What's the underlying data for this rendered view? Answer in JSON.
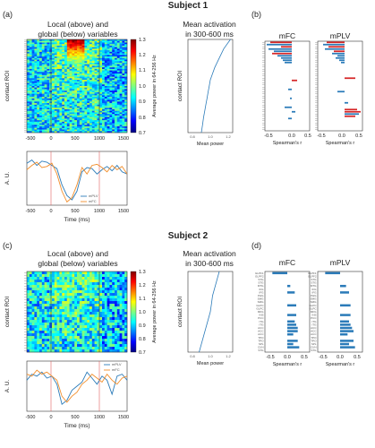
{
  "titles": {
    "subject1": "Subject 1",
    "subject2": "Subject 2"
  },
  "panels": [
    {
      "id": "a",
      "letter": "(a)",
      "heatmap_title": [
        "Local (above) and",
        "global (below) variables"
      ],
      "ylabel": "contact ROI",
      "colorbar_label": "Average power in 64-256 Hz",
      "colorbar_ticks": [
        "1.3",
        "1.2",
        "1.1",
        "1.0",
        "0.9",
        "0.8",
        "0.7"
      ],
      "lines_ylabel": "A. U.",
      "lines_xlabel": "Time (ms)",
      "lines_xticks": [
        "-500",
        "0",
        "500",
        "1000",
        "1500"
      ],
      "legend": [
        "mPLV",
        "mFC"
      ],
      "mean_title": [
        "Mean activation",
        "in 300-600 ms"
      ],
      "mean_xlabel": "Mean power",
      "mean_xticks": [
        "0.8",
        "1.0",
        "1.2"
      ]
    },
    {
      "id": "c",
      "letter": "(c)",
      "heatmap_title": [
        "Local (above) and",
        "global (below) variables"
      ],
      "ylabel": "contact ROI",
      "colorbar_label": "Average power in 64-256 Hz",
      "colorbar_ticks": [
        "1.3",
        "1.2",
        "1.1",
        "1.0",
        "0.9",
        "0.8",
        "0.7"
      ],
      "lines_ylabel": "A. U.",
      "lines_xlabel": "Time (ms)",
      "lines_xticks": [
        "-500",
        "0",
        "500",
        "1000",
        "1500"
      ],
      "legend": [
        "mPLV",
        "mFC"
      ],
      "mean_title": [
        "Mean activation",
        "in 300-600 ms"
      ],
      "mean_xlabel": "Mean power",
      "mean_xticks": [
        "0.8",
        "1.0",
        "1.2"
      ]
    },
    {
      "id": "b",
      "letter": "(b)",
      "corr_titles": [
        "mFC",
        "mPLV"
      ],
      "xlabel": "Spearman's r",
      "xticks": [
        "-0.5",
        "0.0",
        "0.5"
      ]
    },
    {
      "id": "d",
      "letter": "(d)",
      "corr_titles": [
        "mFC",
        "mPLV"
      ],
      "xlabel": "Spearman's r",
      "xticks": [
        "-0.5",
        "0.0",
        "0.5"
      ],
      "roi_labels": [
        "GLPF1",
        "GLPF2",
        "STG",
        "STG",
        "MTG",
        "IFG",
        "IFG",
        "PHG",
        "SMG",
        "SMG",
        "GLPC",
        "GLPC",
        "MFG",
        "INS",
        "PCC",
        "ITG",
        "ITG",
        "ACC",
        "ACC",
        "ACC",
        "TPO",
        "TPO",
        "SPL",
        "CUN",
        "STG"
      ]
    }
  ],
  "chart_data": [
    {
      "type": "heatmap",
      "panel": "a",
      "xlim": [
        -500,
        1500
      ],
      "clim": [
        0.7,
        1.3
      ],
      "rows": 60,
      "event_lines_ms": [
        0,
        1000
      ],
      "hot_region": {
        "ms": [
          300,
          650
        ],
        "rows": [
          0,
          15
        ],
        "peak": 1.28
      }
    },
    {
      "type": "line",
      "panel": "a",
      "xlim": [
        -500,
        1500
      ],
      "x": [
        -500,
        -400,
        -300,
        -200,
        -100,
        0,
        100,
        200,
        300,
        400,
        500,
        600,
        700,
        800,
        900,
        1000,
        1100,
        1200,
        1300,
        1400,
        1500
      ],
      "series": [
        {
          "name": "mPLV",
          "color": "#2b7bb9",
          "values": [
            0.7,
            0.85,
            0.6,
            0.8,
            0.75,
            0.6,
            0.45,
            -0.3,
            -0.8,
            -1.0,
            -0.6,
            0.3,
            0.5,
            0.45,
            0.2,
            0.4,
            0.55,
            0.35,
            0.6,
            0.3,
            0.2
          ]
        },
        {
          "name": "mFC",
          "color": "#f28e2b",
          "values": [
            0.4,
            0.6,
            0.75,
            0.5,
            0.55,
            0.7,
            0.2,
            -0.6,
            -1.1,
            -0.9,
            -0.3,
            0.5,
            0.2,
            0.6,
            0.65,
            0.5,
            0.3,
            0.6,
            0.4,
            0.55,
            0.2
          ]
        }
      ]
    },
    {
      "type": "line",
      "panel": "a",
      "xlim": [
        0.8,
        1.2
      ],
      "rows": 60,
      "x": [
        0.92,
        0.93,
        0.94,
        0.95,
        0.96,
        0.97,
        0.98,
        0.99,
        1.0,
        1.02,
        1.04,
        1.08,
        1.12,
        1.18
      ],
      "y_row": [
        60,
        55,
        50,
        46,
        42,
        38,
        34,
        30,
        26,
        22,
        18,
        12,
        6,
        0
      ]
    },
    {
      "type": "heatmap",
      "panel": "c",
      "xlim": [
        -500,
        1500
      ],
      "clim": [
        0.7,
        1.3
      ],
      "rows": 30,
      "event_lines_ms": [
        0,
        1000
      ]
    },
    {
      "type": "line",
      "panel": "c",
      "xlim": [
        -500,
        1500
      ],
      "x": [
        -500,
        -400,
        -300,
        -200,
        -100,
        0,
        100,
        200,
        300,
        400,
        500,
        600,
        700,
        800,
        900,
        1000,
        1100,
        1200,
        1300,
        1400,
        1500
      ],
      "series": [
        {
          "name": "mPLV",
          "color": "#2b7bb9",
          "values": [
            0.3,
            0.6,
            0.5,
            0.7,
            0.4,
            0.5,
            0.1,
            -0.9,
            -0.7,
            -0.2,
            0.0,
            0.2,
            0.7,
            0.4,
            0.1,
            0.5,
            0.3,
            -0.4,
            0.5,
            0.6,
            0.3
          ]
        },
        {
          "name": "mFC",
          "color": "#f28e2b",
          "values": [
            0.6,
            0.5,
            0.8,
            0.6,
            0.7,
            0.5,
            0.3,
            -0.5,
            -0.8,
            -0.5,
            -0.3,
            0.1,
            0.3,
            0.6,
            0.4,
            0.2,
            0.6,
            0.3,
            0.1,
            0.4,
            0.5
          ]
        }
      ]
    },
    {
      "type": "line",
      "panel": "c",
      "xlim": [
        0.8,
        1.2
      ],
      "rows": 30,
      "x": [
        0.9,
        0.92,
        0.94,
        0.96,
        0.98,
        1.0,
        1.01,
        1.02,
        1.04,
        1.06,
        1.08
      ],
      "y_row": [
        30,
        27,
        24,
        21,
        18,
        15,
        12,
        9,
        6,
        3,
        0
      ]
    },
    {
      "type": "bar",
      "panel": "b",
      "orientation": "horizontal",
      "xlim": [
        -0.75,
        0.5
      ],
      "series": [
        {
          "name": "mFC",
          "values": [
            -0.6,
            -0.7,
            -0.3,
            -0.65,
            -0.5,
            -0.55,
            -0.4,
            -0.3,
            -0.25,
            -0.2,
            0.0,
            0.0,
            0.0,
            0.0,
            0.0,
            0.0,
            0.0,
            0.15,
            0.0,
            0.0,
            0.0,
            -0.1,
            0.0,
            0.0,
            0.0,
            -0.05,
            0.0,
            0.0,
            0.0,
            -0.2,
            0.0,
            0.1,
            0.0,
            0.0,
            -0.1,
            0.0,
            0.0,
            0.0,
            0.0,
            0.0
          ],
          "highlight": [
            "#d62728",
            "#2b7bb9",
            "#d62728",
            "#2b7bb9",
            "#2b7bb9",
            "#d62728",
            "#2b7bb9",
            "#2b7bb9",
            "#2b7bb9",
            "#2b7bb9",
            "#2b7bb9",
            "#2b7bb9",
            "#2b7bb9",
            "#2b7bb9",
            "#2b7bb9",
            "#2b7bb9",
            "#2b7bb9",
            "#d62728",
            "#2b7bb9",
            "#2b7bb9",
            "#2b7bb9",
            "#2b7bb9",
            "#2b7bb9",
            "#2b7bb9",
            "#2b7bb9",
            "#2b7bb9",
            "#2b7bb9",
            "#2b7bb9",
            "#2b7bb9",
            "#2b7bb9",
            "#2b7bb9",
            "#2b7bb9",
            "#2b7bb9",
            "#2b7bb9",
            "#2b7bb9",
            "#2b7bb9",
            "#2b7bb9",
            "#2b7bb9",
            "#2b7bb9",
            "#2b7bb9"
          ]
        },
        {
          "name": "mPLV",
          "values": [
            -0.5,
            -0.6,
            -0.45,
            -0.55,
            -0.3,
            -0.35,
            -0.2,
            -0.25,
            -0.15,
            -0.1,
            0.0,
            0.0,
            0.0,
            0.0,
            0.0,
            0.0,
            0.3,
            0.0,
            0.0,
            0.0,
            0.0,
            0.0,
            -0.2,
            0.0,
            0.0,
            0.0,
            0.0,
            0.1,
            0.0,
            0.0,
            0.35,
            0.45,
            0.4,
            0.3,
            0.0,
            0.0,
            0.0,
            0.0,
            0.0,
            0.0
          ],
          "highlight": [
            "#d62728",
            "#2b7bb9",
            "#d62728",
            "#2b7bb9",
            "#d62728",
            "#2b7bb9",
            "#2b7bb9",
            "#2b7bb9",
            "#2b7bb9",
            "#2b7bb9",
            "#2b7bb9",
            "#2b7bb9",
            "#2b7bb9",
            "#2b7bb9",
            "#2b7bb9",
            "#2b7bb9",
            "#d62728",
            "#2b7bb9",
            "#2b7bb9",
            "#2b7bb9",
            "#2b7bb9",
            "#2b7bb9",
            "#2b7bb9",
            "#2b7bb9",
            "#2b7bb9",
            "#2b7bb9",
            "#2b7bb9",
            "#2b7bb9",
            "#2b7bb9",
            "#2b7bb9",
            "#d62728",
            "#d62728",
            "#2b7bb9",
            "#d62728",
            "#2b7bb9",
            "#2b7bb9",
            "#2b7bb9",
            "#2b7bb9",
            "#2b7bb9",
            "#2b7bb9"
          ]
        }
      ]
    },
    {
      "type": "bar",
      "panel": "d",
      "orientation": "horizontal",
      "xlim": [
        -0.75,
        0.75
      ],
      "series": [
        {
          "name": "mFC",
          "values": [
            -0.5,
            0.0,
            0.0,
            0.0,
            0.1,
            0.0,
            0.25,
            0.0,
            0.0,
            0.0,
            0.3,
            0.0,
            0.0,
            0.3,
            0.0,
            0.25,
            0.3,
            0.35,
            0.35,
            0.2,
            0.0,
            0.35,
            0.2,
            0.4,
            0.0
          ]
        },
        {
          "name": "mPLV",
          "values": [
            -0.5,
            0.0,
            0.0,
            0.0,
            0.2,
            0.0,
            0.3,
            0.0,
            0.0,
            0.0,
            0.35,
            0.0,
            0.0,
            0.35,
            0.0,
            0.3,
            0.35,
            0.4,
            0.45,
            0.25,
            0.0,
            0.45,
            0.3,
            0.5,
            0.0
          ]
        }
      ]
    }
  ]
}
